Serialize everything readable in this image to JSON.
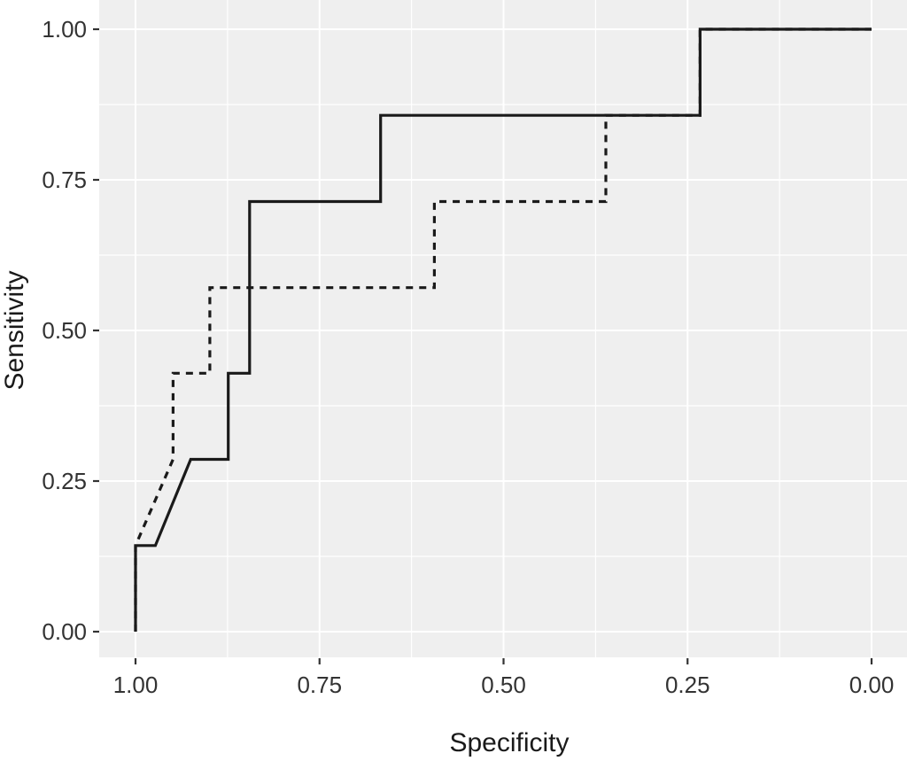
{
  "figure": {
    "background": "#ffffff",
    "panel_background": "#efefef",
    "grid_color": "#ffffff",
    "curve_color": "#1a1a1a",
    "tick_color": "#333333",
    "label_color": "#333333",
    "title_color": "#1a1a1a"
  },
  "chart_data": {
    "type": "line",
    "subtype": "roc-step-curves",
    "title": "",
    "xlabel": "Specificity",
    "ylabel": "Sensitivity",
    "xlim": [
      1.0,
      0.0
    ],
    "ylim": [
      0.0,
      1.0
    ],
    "x_reversed": true,
    "grid": "major+minor",
    "legend_position": "none",
    "x_tick_values": [
      1.0,
      0.75,
      0.5,
      0.25,
      0.0
    ],
    "x_tick_labels": [
      "1.00",
      "0.75",
      "0.50",
      "0.25",
      "0.00"
    ],
    "y_tick_values": [
      0.0,
      0.25,
      0.5,
      0.75,
      1.0
    ],
    "y_tick_labels": [
      "0.00",
      "0.25",
      "0.50",
      "0.75",
      "1.00"
    ],
    "series": [
      {
        "name": "roc-curve-dashed",
        "style": "dashed",
        "points_format": "[specificity, sensitivity]",
        "points": [
          [
            1.0,
            0.0
          ],
          [
            1.0,
            0.143
          ],
          [
            0.949,
            0.286
          ],
          [
            0.949,
            0.429
          ],
          [
            0.899,
            0.429
          ],
          [
            0.899,
            0.571
          ],
          [
            0.594,
            0.571
          ],
          [
            0.594,
            0.714
          ],
          [
            0.361,
            0.714
          ],
          [
            0.361,
            0.857
          ],
          [
            0.233,
            0.857
          ],
          [
            0.233,
            1.0
          ],
          [
            0.0,
            1.0
          ]
        ]
      },
      {
        "name": "roc-curve-solid",
        "style": "solid",
        "points_format": "[specificity, sensitivity]",
        "points": [
          [
            1.0,
            0.0
          ],
          [
            1.0,
            0.143
          ],
          [
            0.973,
            0.143
          ],
          [
            0.925,
            0.286
          ],
          [
            0.874,
            0.286
          ],
          [
            0.874,
            0.429
          ],
          [
            0.845,
            0.429
          ],
          [
            0.845,
            0.714
          ],
          [
            0.667,
            0.714
          ],
          [
            0.667,
            0.857
          ],
          [
            0.233,
            0.857
          ],
          [
            0.233,
            1.0
          ],
          [
            0.0,
            1.0
          ]
        ]
      }
    ]
  }
}
